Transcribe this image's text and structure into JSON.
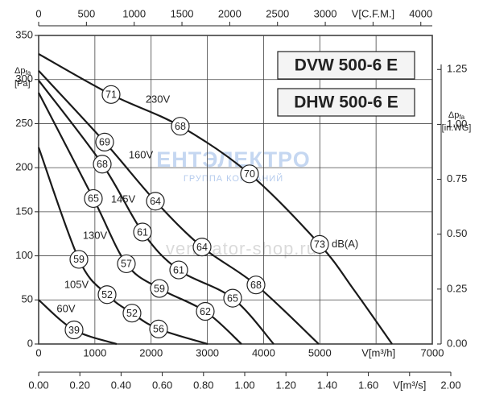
{
  "chart_data": {
    "type": "line",
    "models": [
      "DVW 500-6 E",
      "DHW 500-6 E"
    ],
    "y_label": {
      "main": "Δp",
      "sub": "fa",
      "unit": "[Pa]"
    },
    "y2_label": {
      "main": "Δp",
      "sub": "fa",
      "unit": "[in.WG]"
    },
    "watermark": [
      "ЕНТЭЛЕКТРО",
      "ГРУППА КОМПАНИЙ",
      "ventilator-shop.ru"
    ],
    "db_unit": "dB(A)",
    "grid": true,
    "xlim": [
      0,
      7000
    ],
    "xticks": [
      0,
      1000,
      2000,
      3000,
      4000,
      5000,
      {
        "value": 6000,
        "label": "V[m³/h]"
      },
      7000
    ],
    "x2lim": [
      0,
      4120
    ],
    "x2ticks": [
      0,
      500,
      1000,
      1500,
      2000,
      2500,
      3000,
      {
        "value": 3500,
        "label": "V[C.F.M.]"
      },
      4000
    ],
    "x3lim": [
      0,
      2.0
    ],
    "x3ticks": [
      {
        "value": 0,
        "label": "0.00"
      },
      {
        "value": 0.2,
        "label": "0.20"
      },
      {
        "value": 0.4,
        "label": "0.40"
      },
      {
        "value": 0.6,
        "label": "0.60"
      },
      {
        "value": 0.8,
        "label": "0.80"
      },
      {
        "value": 1.0,
        "label": "1.00"
      },
      {
        "value": 1.2,
        "label": "1.20"
      },
      {
        "value": 1.4,
        "label": "1.40"
      },
      {
        "value": 1.6,
        "label": "1.60"
      },
      {
        "value": 1.8,
        "label": "V[m³/s]"
      },
      {
        "value": 2.0,
        "label": "2.00"
      }
    ],
    "ylim": [
      0,
      350
    ],
    "yticks": [
      0,
      50,
      100,
      150,
      200,
      250,
      300,
      350
    ],
    "y2lim": [
      0,
      1.405
    ],
    "y2ticks": [
      {
        "value": 0,
        "label": "0.00"
      },
      {
        "value": 0.25,
        "label": "0.25"
      },
      {
        "value": 0.5,
        "label": "0.50"
      },
      {
        "value": 0.75,
        "label": "0.75"
      },
      {
        "value": 1.0,
        "label": "1.00"
      },
      {
        "value": 1.25,
        "label": "1.25"
      }
    ],
    "series": [
      {
        "name": "230V",
        "color": "#1a1a1a",
        "x": [
          0,
          1288,
          2519,
          3750,
          4996,
          5611,
          6284
        ],
        "values": [
          329,
          283,
          247,
          193,
          113,
          61,
          0
        ],
        "db_labels": [
          null,
          71,
          68,
          70,
          73,
          null,
          null
        ]
      },
      {
        "name": "160V",
        "color": "#1a1a1a",
        "x": [
          0,
          1174,
          2076,
          2906,
          3865,
          4981
        ],
        "values": [
          310,
          229,
          162,
          110,
          67,
          0
        ],
        "db_labels": [
          null,
          69,
          64,
          64,
          68,
          null
        ]
      },
      {
        "name": "145V",
        "color": "#1a1a1a",
        "x": [
          0,
          1131,
          1847,
          2491,
          3450,
          4180
        ],
        "values": [
          299,
          204,
          127,
          84,
          52,
          0
        ],
        "db_labels": [
          null,
          68,
          61,
          61,
          65,
          null
        ]
      },
      {
        "name": "130V",
        "color": "#1a1a1a",
        "x": [
          0,
          973,
          1560,
          2147,
          2963,
          3607
        ],
        "values": [
          285,
          165,
          91,
          63,
          37,
          0
        ],
        "db_labels": [
          null,
          65,
          57,
          59,
          62,
          null
        ]
      },
      {
        "name": "105V",
        "color": "#1a1a1a",
        "x": [
          0,
          716,
          1217,
          1660,
          2133,
          3006
        ],
        "values": [
          223,
          96,
          56,
          35,
          17,
          0
        ],
        "db_labels": [
          null,
          59,
          52,
          52,
          56,
          null
        ]
      },
      {
        "name": "60V",
        "color": "#1a1a1a",
        "x": [
          0,
          630,
          1388
        ],
        "values": [
          50,
          16,
          0
        ],
        "db_labels": [
          null,
          39,
          null
        ]
      }
    ]
  }
}
